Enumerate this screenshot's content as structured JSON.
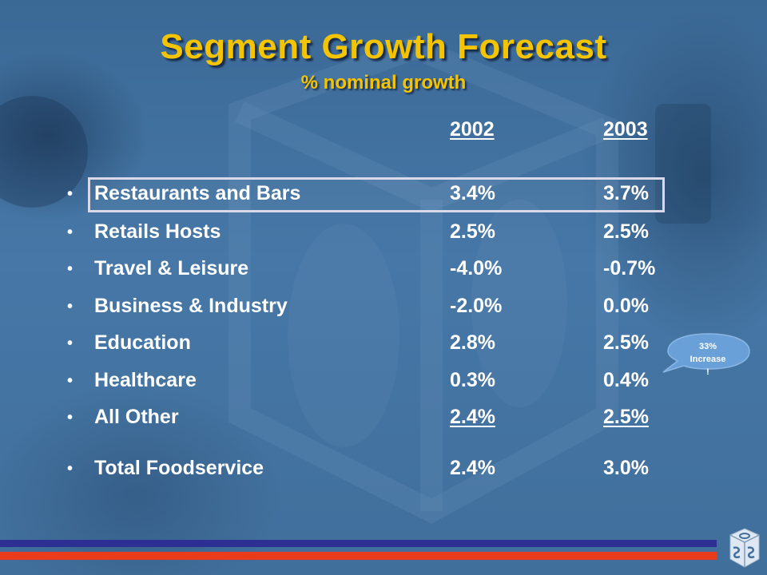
{
  "slide": {
    "title": "Segment Growth Forecast",
    "subtitle": "% nominal growth"
  },
  "columns": [
    "2002",
    "2003"
  ],
  "rows": [
    {
      "label": "Restaurants and Bars",
      "y2002": "3.4%",
      "y2003": "3.7%",
      "highlighted": true
    },
    {
      "label": "Retails Hosts",
      "y2002": "2.5%",
      "y2003": "2.5%"
    },
    {
      "label": "Travel & Leisure",
      "y2002": "-4.0%",
      "y2003": "-0.7%"
    },
    {
      "label": "Business & Industry",
      "y2002": "-2.0%",
      "y2003": "0.0%"
    },
    {
      "label": "Education",
      "y2002": "2.8%",
      "y2003": "2.5%"
    },
    {
      "label": "Healthcare",
      "y2002": "0.3%",
      "y2003": "0.4%"
    },
    {
      "label": "All Other",
      "y2002": "2.4%",
      "y2003": "2.5%"
    }
  ],
  "total": {
    "label": "Total Foodservice",
    "y2002": "2.4%",
    "y2003": "3.0%"
  },
  "callout": {
    "line1": "33%",
    "line2": "Increase",
    "line3": "!"
  },
  "bullet_glyph": "•",
  "colors": {
    "title": "#f5c400",
    "text": "#ffffff",
    "background": "#3f6f9c",
    "bar_blue": "#2d2f92",
    "bar_red": "#ea3b1a",
    "callout": "#6aa0d8"
  },
  "icons": [
    "background-company-logo-icon",
    "corner-company-logo-icon",
    "speech-bubble-icon"
  ]
}
